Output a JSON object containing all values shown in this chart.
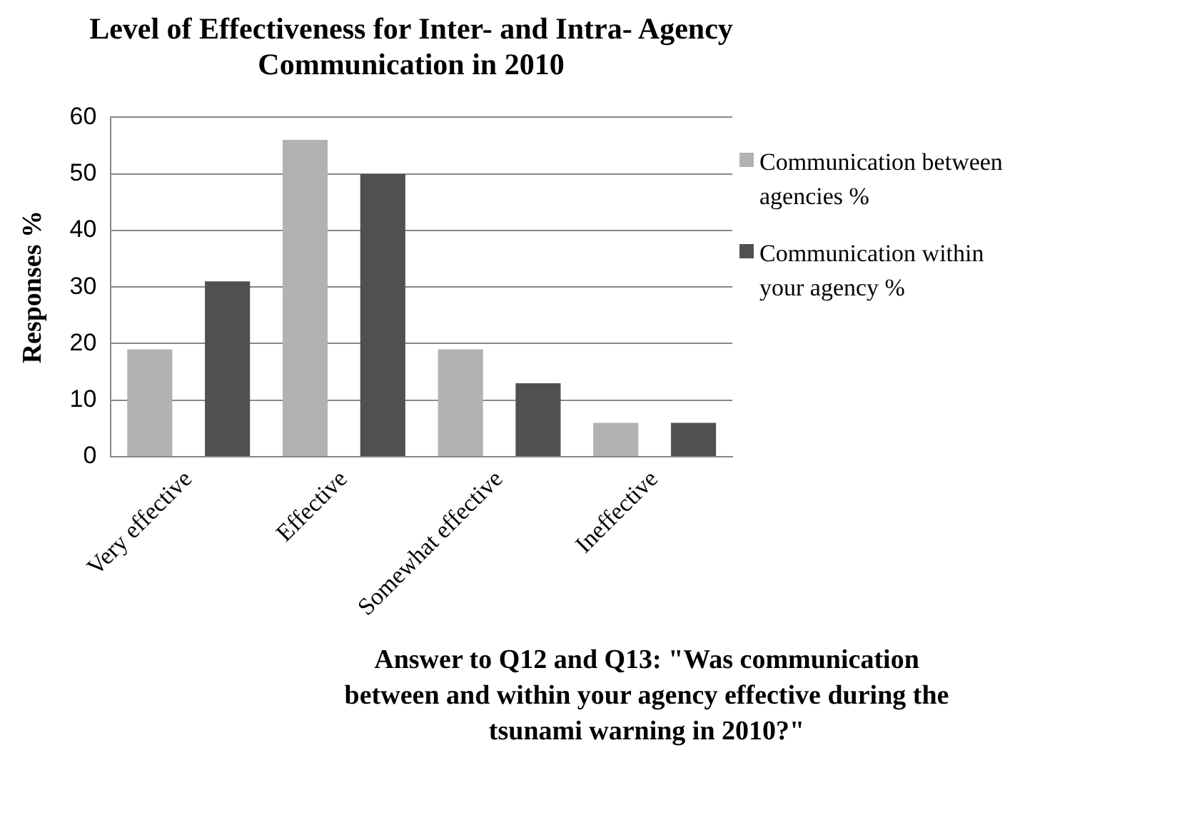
{
  "chart_data": {
    "type": "bar",
    "title": "Level of Effectiveness for Inter- and Intra-  Agency Communication in 2010",
    "ylabel": "Responses %",
    "categories": [
      "Very effective",
      "Effective",
      "Somewhat effective",
      "Ineffective"
    ],
    "series": [
      {
        "name": "Communication between agencies  %",
        "color": "#b2b2b2",
        "values": [
          19,
          56,
          19,
          6
        ]
      },
      {
        "name": "Communication within your agency  %",
        "color": "#505050",
        "values": [
          31,
          50,
          13,
          6
        ]
      }
    ],
    "ylim": [
      0,
      60
    ],
    "yticks": [
      0,
      10,
      20,
      30,
      40,
      50,
      60
    ],
    "grid": "y",
    "legend": "right",
    "annotations": [
      "Answer to Q12 and Q13: \"Was communication between and within your agency effective during the tsunami warning in 2010?\""
    ]
  }
}
